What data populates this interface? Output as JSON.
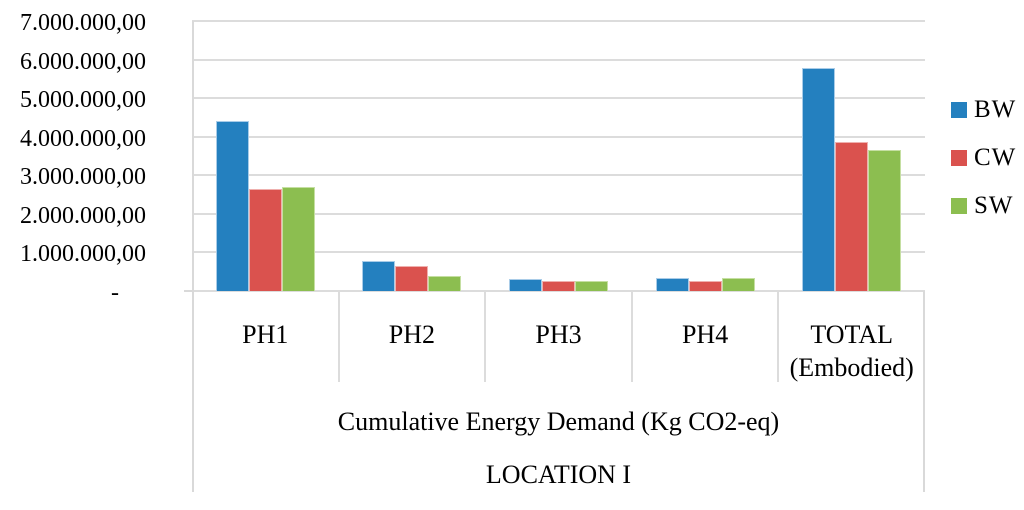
{
  "chart_data": {
    "type": "bar",
    "title": "",
    "categories": [
      "PH1",
      "PH2",
      "PH3",
      "PH4",
      "TOTAL (Embodied)"
    ],
    "category_label_lines": [
      [
        "PH1"
      ],
      [
        "PH2"
      ],
      [
        "PH3"
      ],
      [
        "PH4"
      ],
      [
        "TOTAL",
        "(Embodied)"
      ]
    ],
    "series": [
      {
        "name": "BW",
        "color": "#2480BF",
        "border_color": "#A9CCE8",
        "values": [
          4420000,
          780000,
          320000,
          330000,
          5790000
        ]
      },
      {
        "name": "CW",
        "color": "#DA524E",
        "border_color": "#EFB0AE",
        "values": [
          2650000,
          650000,
          250000,
          260000,
          3870000
        ]
      },
      {
        "name": "SW",
        "color": "#8CBE50",
        "border_color": "#C5DFA2",
        "values": [
          2690000,
          390000,
          270000,
          340000,
          3660000
        ]
      }
    ],
    "xlabel_line1": "Cumulative Energy Demand (Kg CO2-eq)",
    "xlabel_line2": "LOCATION I",
    "ylabel": "",
    "ylim": [
      0,
      7000000
    ],
    "yticks": [
      {
        "value": 7000000,
        "label": "7.000.000,00"
      },
      {
        "value": 6000000,
        "label": "6.000.000,00"
      },
      {
        "value": 5000000,
        "label": "5.000.000,00"
      },
      {
        "value": 4000000,
        "label": "4.000.000,00"
      },
      {
        "value": 3000000,
        "label": "3.000.000,00"
      },
      {
        "value": 2000000,
        "label": "2.000.000,00"
      },
      {
        "value": 1000000,
        "label": "1.000.000,00"
      },
      {
        "value": 0,
        "label": "-"
      }
    ],
    "grid": true,
    "legend": [
      "BW",
      "CW",
      "SW"
    ],
    "legend_position": "right",
    "colors": {
      "gridline": "#DCDCDC",
      "axis_line": "#D9D9D9",
      "text": "#000000",
      "background": "#FFFFFF"
    }
  }
}
